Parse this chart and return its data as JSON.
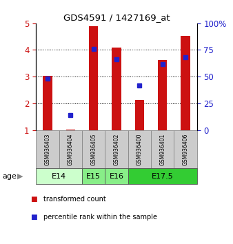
{
  "title": "GDS4591 / 1427169_at",
  "samples": [
    "GSM936403",
    "GSM936404",
    "GSM936405",
    "GSM936402",
    "GSM936400",
    "GSM936401",
    "GSM936406"
  ],
  "transformed_count": [
    3.02,
    1.02,
    4.88,
    4.08,
    2.12,
    3.62,
    4.52
  ],
  "percentile_rank": [
    0.48,
    0.14,
    0.76,
    0.66,
    0.42,
    0.62,
    0.68
  ],
  "age_groups": [
    {
      "label": "E14",
      "span": [
        0,
        2
      ],
      "color": "#ccffcc"
    },
    {
      "label": "E15",
      "span": [
        2,
        3
      ],
      "color": "#88ee88"
    },
    {
      "label": "E16",
      "span": [
        3,
        4
      ],
      "color": "#88ee88"
    },
    {
      "label": "E17.5",
      "span": [
        4,
        7
      ],
      "color": "#33cc33"
    }
  ],
  "bar_color": "#cc1111",
  "dot_color": "#2222cc",
  "ylim_left": [
    1,
    5
  ],
  "ylim_right": [
    0,
    100
  ],
  "yticks_left": [
    1,
    2,
    3,
    4,
    5
  ],
  "yticks_right": [
    0,
    25,
    50,
    75,
    100
  ],
  "background_color": "#ffffff",
  "left_tick_color": "#cc1111",
  "right_tick_color": "#2222cc",
  "sample_box_color": "#cccccc",
  "sample_box_edge": "#888888",
  "bar_width": 0.4
}
